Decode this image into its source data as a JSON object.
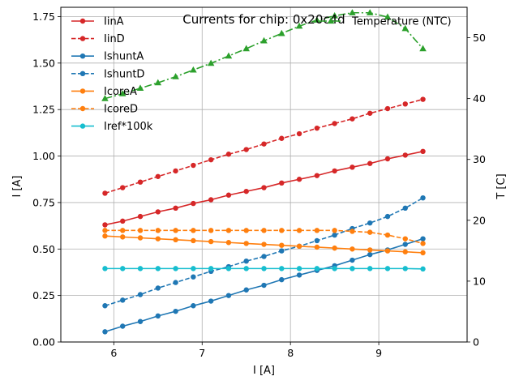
{
  "chart_data": {
    "type": "line",
    "title": "Currents for chip: 0x20c4d",
    "xlabel": "I [A]",
    "ylabel": "I [A]",
    "y2label": "T [C]",
    "xlim": [
      5.4,
      10.0
    ],
    "ylim": [
      0.0,
      1.8
    ],
    "y2lim": [
      0,
      55
    ],
    "xticks": [
      6,
      7,
      8,
      9
    ],
    "yticks": [
      0.0,
      0.25,
      0.5,
      0.75,
      1.0,
      1.25,
      1.5,
      1.75
    ],
    "yticklabels": [
      "0.00",
      "0.25",
      "0.50",
      "0.75",
      "1.00",
      "1.25",
      "1.50",
      "1.75"
    ],
    "y2ticks": [
      0,
      10,
      20,
      30,
      40,
      50
    ],
    "grid": true,
    "legend_left_position": "upper-left",
    "legend_right_position": "upper-right",
    "x": [
      5.9,
      6.1,
      6.3,
      6.5,
      6.7,
      6.9,
      7.1,
      7.3,
      7.5,
      7.7,
      7.9,
      8.1,
      8.3,
      8.5,
      8.7,
      8.9,
      9.1,
      9.3,
      9.5
    ],
    "series": [
      {
        "name": "IinA",
        "axis": "left",
        "color": "#d62728",
        "dash": "solid",
        "marker": "circle",
        "values": [
          0.63,
          0.65,
          0.675,
          0.7,
          0.72,
          0.745,
          0.765,
          0.79,
          0.81,
          0.83,
          0.855,
          0.875,
          0.895,
          0.92,
          0.94,
          0.96,
          0.985,
          1.005,
          1.025
        ]
      },
      {
        "name": "IinD",
        "axis": "left",
        "color": "#d62728",
        "dash": "dashed",
        "marker": "circle",
        "values": [
          0.8,
          0.83,
          0.86,
          0.89,
          0.92,
          0.95,
          0.98,
          1.01,
          1.035,
          1.065,
          1.095,
          1.12,
          1.15,
          1.175,
          1.2,
          1.23,
          1.255,
          1.28,
          1.305
        ]
      },
      {
        "name": "IshuntA",
        "axis": "left",
        "color": "#1f77b4",
        "dash": "solid",
        "marker": "circle",
        "values": [
          0.055,
          0.085,
          0.11,
          0.14,
          0.165,
          0.195,
          0.22,
          0.25,
          0.28,
          0.305,
          0.335,
          0.36,
          0.385,
          0.41,
          0.44,
          0.47,
          0.495,
          0.525,
          0.555
        ]
      },
      {
        "name": "IshuntD",
        "axis": "left",
        "color": "#1f77b4",
        "dash": "dashed",
        "marker": "circle",
        "values": [
          0.195,
          0.225,
          0.255,
          0.29,
          0.32,
          0.35,
          0.38,
          0.405,
          0.435,
          0.46,
          0.49,
          0.515,
          0.545,
          0.575,
          0.61,
          0.64,
          0.675,
          0.72,
          0.775
        ]
      },
      {
        "name": "IcoreA",
        "axis": "left",
        "color": "#ff7f0e",
        "dash": "solid",
        "marker": "circle",
        "values": [
          0.57,
          0.565,
          0.56,
          0.555,
          0.55,
          0.545,
          0.54,
          0.535,
          0.53,
          0.525,
          0.52,
          0.515,
          0.51,
          0.505,
          0.5,
          0.495,
          0.49,
          0.485,
          0.48
        ]
      },
      {
        "name": "IcoreD",
        "axis": "left",
        "color": "#ff7f0e",
        "dash": "dashed",
        "marker": "circle",
        "values": [
          0.6,
          0.6,
          0.6,
          0.6,
          0.6,
          0.6,
          0.6,
          0.6,
          0.6,
          0.6,
          0.6,
          0.6,
          0.6,
          0.6,
          0.595,
          0.59,
          0.575,
          0.555,
          0.53
        ]
      },
      {
        "name": "Iref*100k",
        "axis": "left",
        "color": "#17becf",
        "dash": "solid",
        "marker": "circle",
        "values": [
          0.395,
          0.395,
          0.395,
          0.395,
          0.395,
          0.395,
          0.395,
          0.395,
          0.395,
          0.395,
          0.395,
          0.395,
          0.395,
          0.395,
          0.395,
          0.395,
          0.395,
          0.395,
          0.393
        ]
      },
      {
        "name": "Temperature (NTC)",
        "axis": "right",
        "color": "#2ca02c",
        "dash": "dashdot",
        "marker": "triangle",
        "values": [
          40.0,
          40.8,
          41.7,
          42.6,
          43.6,
          44.7,
          45.8,
          47.0,
          48.2,
          49.5,
          50.7,
          51.9,
          52.9,
          53.6,
          54.1,
          54.1,
          53.4,
          51.5,
          48.2
        ]
      }
    ]
  }
}
